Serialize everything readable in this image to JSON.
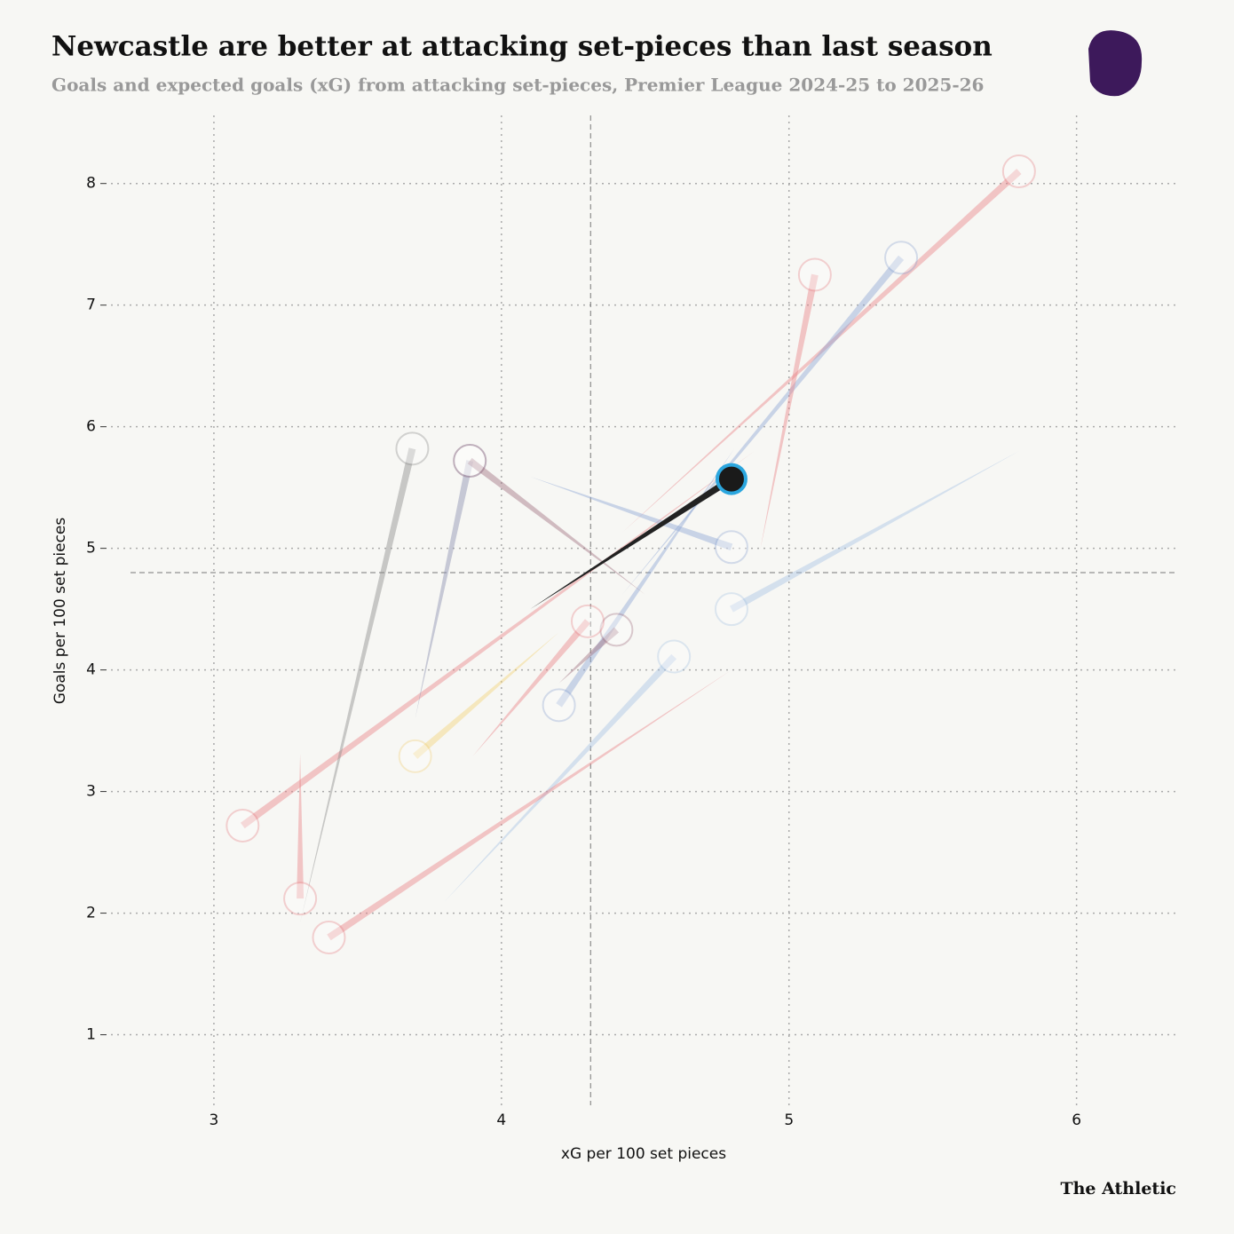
{
  "chart_data": {
    "type": "comet",
    "title": "Newcastle are better at attacking set-pieces than last season",
    "subtitle": "Goals and expected goals (xG) from attacking set-pieces, Premier League 2024-25 to 2025-26",
    "x_label": "xG per 100 set pieces",
    "y_label": "Goals per 100 set pieces",
    "source": "The Athletic",
    "xlim": [
      2.71,
      6.35
    ],
    "ylim": [
      0.42,
      8.56
    ],
    "xticks": [
      3,
      4,
      5,
      6
    ],
    "yticks": [
      1,
      2,
      3,
      4,
      5,
      6,
      7,
      8
    ],
    "grid": true,
    "x_reference": 4.31,
    "y_reference": 4.8,
    "series": [
      {
        "color": "#e8848a",
        "x": [
          4.42,
          5.8
        ],
        "values": [
          5.13,
          8.1
        ]
      },
      {
        "color": "#e8848a",
        "x": [
          4.88,
          3.1
        ],
        "values": [
          5.8,
          2.72
        ]
      },
      {
        "color": "#8ea6d4",
        "x": [
          4.42,
          5.39
        ],
        "values": [
          4.62,
          7.39
        ]
      },
      {
        "color": "#8ea6d4",
        "x": [
          4.81,
          4.2
        ],
        "values": [
          5.82,
          3.71
        ]
      },
      {
        "color": "#e8848a",
        "x": [
          4.9,
          5.09
        ],
        "values": [
          4.99,
          7.25
        ]
      },
      {
        "color": "#8c8c8c",
        "x": [
          3.3,
          3.69
        ],
        "values": [
          1.92,
          5.82
        ]
      },
      {
        "color": "#8a8fb0",
        "x": [
          3.7,
          3.89
        ],
        "values": [
          3.6,
          5.72
        ]
      },
      {
        "color": "#a07080",
        "x": [
          4.5,
          3.89
        ],
        "values": [
          4.62,
          5.72
        ]
      },
      {
        "color": "#a07080",
        "x": [
          4.2,
          4.4
        ],
        "values": [
          3.89,
          4.33
        ]
      },
      {
        "color": "#8ea6d4",
        "x": [
          4.1,
          4.8
        ],
        "values": [
          5.59,
          5.01
        ]
      },
      {
        "color": "#a9c4e4",
        "x": [
          5.8,
          4.8
        ],
        "values": [
          5.8,
          4.5
        ]
      },
      {
        "color": "#a9c4e4",
        "x": [
          3.8,
          4.6
        ],
        "values": [
          2.09,
          4.11
        ]
      },
      {
        "color": "#f2d27a",
        "x": [
          4.2,
          3.7
        ],
        "values": [
          4.31,
          3.29
        ]
      },
      {
        "color": "#e8848a",
        "x": [
          3.9,
          4.3
        ],
        "values": [
          3.29,
          4.4
        ]
      },
      {
        "color": "#e8848a",
        "x": [
          4.8,
          3.4
        ],
        "values": [
          4.0,
          1.8
        ]
      },
      {
        "color": "#e8848a",
        "x": [
          3.3,
          3.3
        ],
        "values": [
          3.31,
          2.12
        ]
      },
      {
        "color": "#222222",
        "x": [
          4.1,
          4.8
        ],
        "values": [
          4.5,
          5.57
        ]
      }
    ]
  }
}
